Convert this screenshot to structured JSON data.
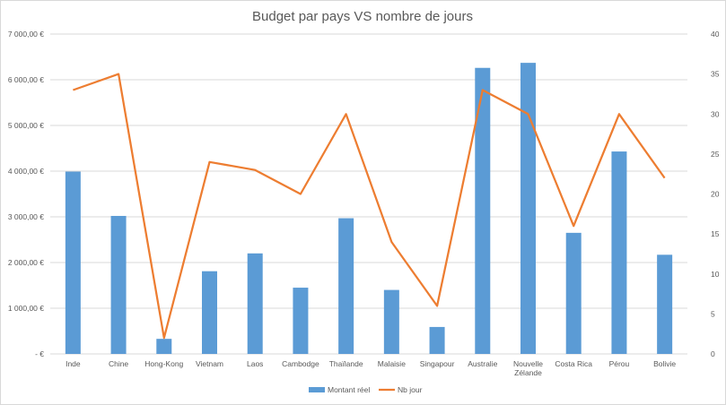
{
  "chart_data": {
    "type": "bar",
    "title": "Budget par pays VS nombre de jours",
    "xlabel": "",
    "ylabel": "",
    "y2label": "",
    "categories": [
      "Inde",
      "Chine",
      "Hong-Kong",
      "Vietnam",
      "Laos",
      "Cambodge",
      "Thaïlande",
      "Malaisie",
      "Singapour",
      "Australie",
      "Nouvelle Zélande",
      "Costa Rica",
      "Pérou",
      "Bolivie"
    ],
    "category_labels": [
      [
        "Inde"
      ],
      [
        "Chine"
      ],
      [
        "Hong-Kong"
      ],
      [
        "Vietnam"
      ],
      [
        "Laos"
      ],
      [
        "Cambodge"
      ],
      [
        "Thaïlande"
      ],
      [
        "Malaisie"
      ],
      [
        "Singapour"
      ],
      [
        "Australie"
      ],
      [
        "Nouvelle",
        "Zélande"
      ],
      [
        "Costa Rica"
      ],
      [
        "Pérou"
      ],
      [
        "Bolivie"
      ]
    ],
    "series": [
      {
        "name": "Montant réel",
        "type": "bar",
        "axis": "left",
        "color": "#5b9bd5",
        "values": [
          3990,
          3020,
          330,
          1810,
          2200,
          1450,
          2970,
          1400,
          590,
          6260,
          6370,
          2650,
          4430,
          2170
        ]
      },
      {
        "name": "Nb jour",
        "type": "line",
        "axis": "right",
        "color": "#ed7d31",
        "values": [
          33,
          35,
          2,
          24,
          23,
          20,
          30,
          14,
          6,
          33,
          30,
          16,
          30,
          22
        ]
      }
    ],
    "y_left": {
      "min": 0,
      "max": 7000,
      "step": 1000,
      "tick_labels": [
        "-   €",
        "1 000,00 €",
        "2 000,00 €",
        "3 000,00 €",
        "4 000,00 €",
        "5 000,00 €",
        "6 000,00 €",
        "7 000,00 €"
      ]
    },
    "y_right": {
      "min": 0,
      "max": 40,
      "step": 5,
      "tick_labels": [
        "0",
        "5",
        "10",
        "15",
        "20",
        "25",
        "30",
        "35",
        "40"
      ]
    },
    "grid": true,
    "legend_position": "bottom"
  }
}
